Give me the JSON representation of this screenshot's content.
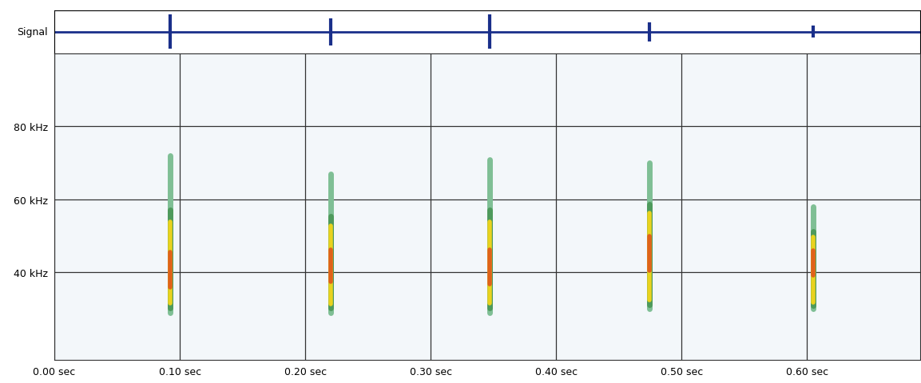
{
  "chart_data": {
    "type": "spectrogram",
    "signal_label": "Signal",
    "xlim": [
      0,
      0.69
    ],
    "xticks": [
      {
        "value": 0,
        "label": "0.00 sec"
      },
      {
        "value": 0.1,
        "label": "0.10 sec"
      },
      {
        "value": 0.2,
        "label": "0.20 sec"
      },
      {
        "value": 0.3,
        "label": "0.30 sec"
      },
      {
        "value": 0.4,
        "label": "0.40 sec"
      },
      {
        "value": 0.5,
        "label": "0.50 sec"
      },
      {
        "value": 0.6,
        "label": "0.60 sec"
      }
    ],
    "ylim": [
      16,
      100
    ],
    "yticks": [
      {
        "value": 40,
        "label": "40 kHz"
      },
      {
        "value": 60,
        "label": "60 kHz"
      },
      {
        "value": 80,
        "label": "80 kHz"
      }
    ],
    "grid": true,
    "calls": {
      "time": [
        0.092,
        0.22,
        0.347,
        0.474,
        0.605
      ],
      "low_frequency": [
        29,
        29,
        29,
        30,
        30
      ],
      "high_frequency": [
        72,
        67,
        71,
        70,
        58
      ],
      "peak_frequency": [
        39,
        41,
        40,
        45,
        43
      ],
      "amplitude": [
        1.0,
        0.8,
        1.0,
        0.55,
        0.35
      ]
    }
  }
}
